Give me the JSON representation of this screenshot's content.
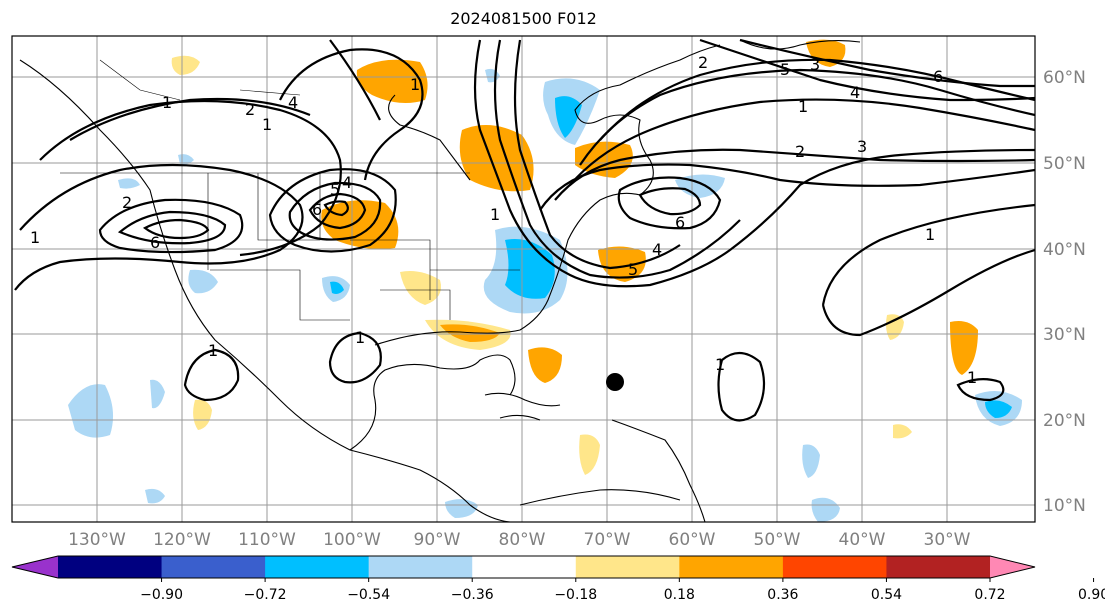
{
  "title": "2024081500 F012",
  "lon_labels": [
    "130°W",
    "120°W",
    "110°W",
    "100°W",
    "90°W",
    "80°W",
    "70°W",
    "60°W",
    "50°W",
    "40°W",
    "30°W"
  ],
  "lat_labels": [
    "60°N",
    "50°N",
    "40°N",
    "30°N",
    "20°N",
    "10°N"
  ],
  "colorbar": {
    "ticks": [
      "−0.90",
      "−0.72",
      "−0.54",
      "−0.36",
      "−0.18",
      "0.18",
      "0.36",
      "0.54",
      "0.72",
      "0.90"
    ],
    "colors": [
      "#9932cc",
      "#000080",
      "#3a5fcd",
      "#00bfff",
      "#add8f5",
      "#ffffff",
      "#ffe68a",
      "#ffa500",
      "#ff4500",
      "#b22222",
      "#ff88b4"
    ]
  },
  "contour_labels": [
    "1",
    "2",
    "4",
    "6",
    "1",
    "2",
    "1",
    "5",
    "4",
    "6",
    "1",
    "4",
    "6",
    "1",
    "2",
    "3",
    "1",
    "5",
    "3",
    "4",
    "5",
    "6",
    "1",
    "1",
    "1",
    "1",
    "1",
    "2"
  ],
  "storm_marker": "storm-position"
}
